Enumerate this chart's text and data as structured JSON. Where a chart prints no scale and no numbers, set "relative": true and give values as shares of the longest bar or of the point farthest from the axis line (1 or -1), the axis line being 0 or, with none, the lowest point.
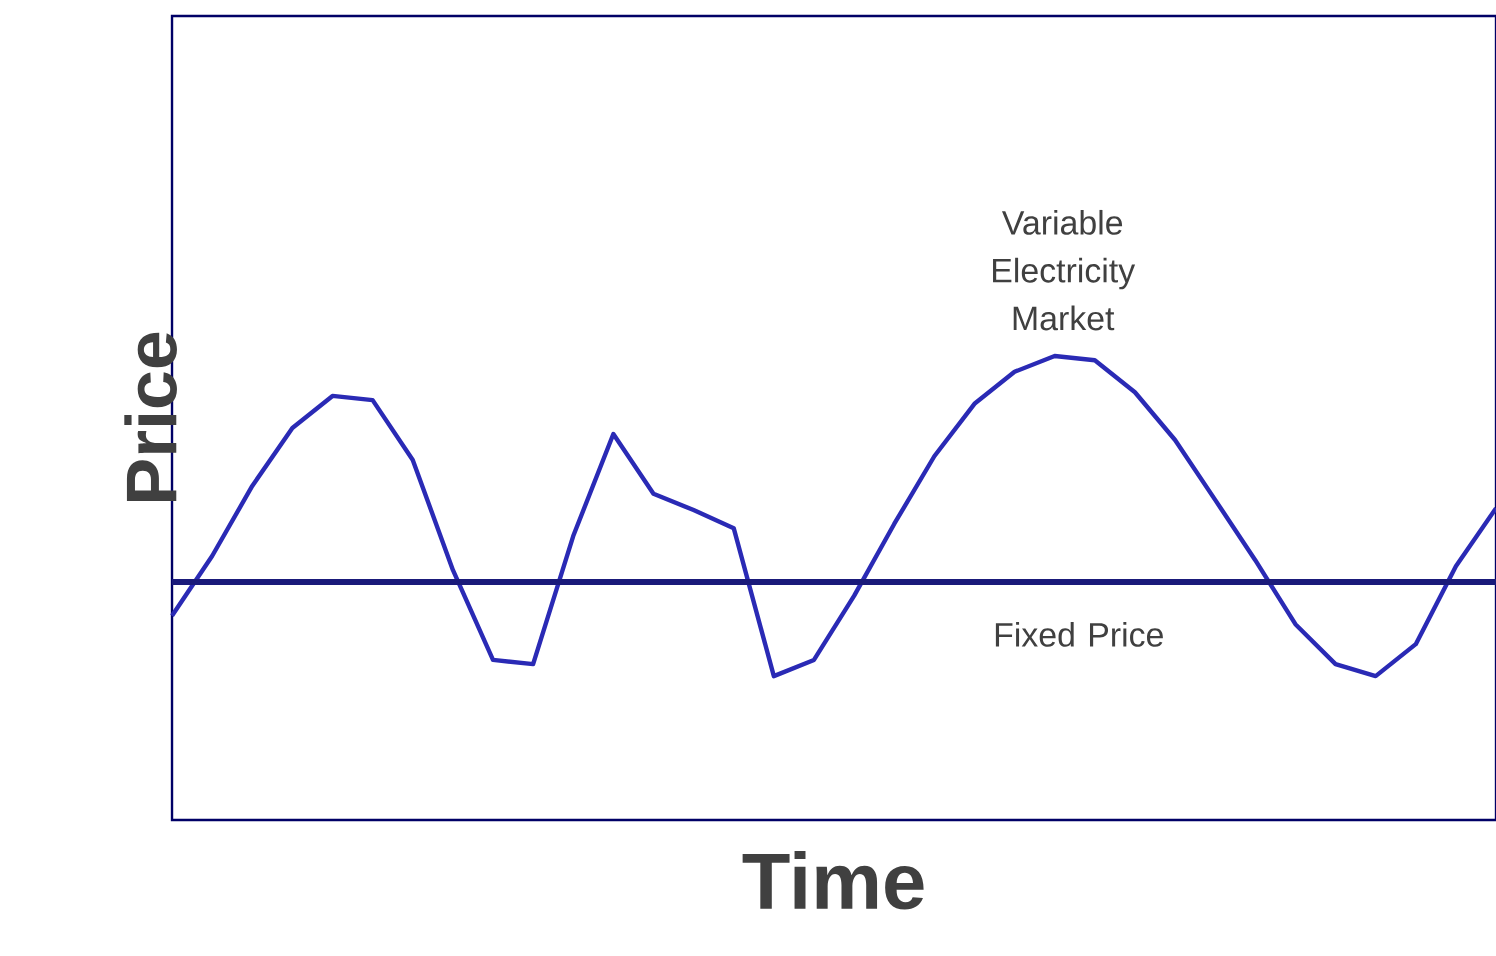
{
  "chart_data": {
    "type": "line",
    "relative": true,
    "xlabel": "Time",
    "ylabel": "Price",
    "categories": [
      null,
      null,
      null,
      null,
      null,
      null,
      null,
      null,
      null,
      null,
      null,
      null,
      null,
      null,
      null,
      null,
      null,
      null,
      null,
      null,
      null,
      null,
      null,
      null,
      null,
      null,
      null,
      null,
      null,
      null,
      null,
      null,
      null,
      null
    ],
    "series": [
      {
        "name": "Variable Electricity Market",
        "color": "#2a2ab5",
        "values": [
          0.44,
          0.569,
          0.72,
          0.845,
          0.914,
          0.905,
          0.776,
          0.539,
          0.345,
          0.336,
          0.612,
          0.832,
          0.703,
          0.668,
          0.629,
          0.31,
          0.345,
          0.483,
          0.638,
          0.784,
          0.897,
          0.966,
          1,
          0.991,
          0.922,
          0.819,
          0.69,
          0.56,
          0.422,
          0.336,
          0.31,
          0.379,
          0.547,
          0.672
        ]
      },
      {
        "name": "Fixed Price",
        "color": "#1a1a7a",
        "values": [
          0.513,
          0.513,
          0.513,
          0.513,
          0.513,
          0.513,
          0.513,
          0.513,
          0.513,
          0.513,
          0.513,
          0.513,
          0.513,
          0.513,
          0.513,
          0.513,
          0.513,
          0.513,
          0.513,
          0.513,
          0.513,
          0.513,
          0.513,
          0.513,
          0.513,
          0.513,
          0.513,
          0.513,
          0.513,
          0.513,
          0.513,
          0.513,
          0.513,
          0.513
        ]
      }
    ],
    "marker": "none",
    "line_style": "solid"
  }
}
